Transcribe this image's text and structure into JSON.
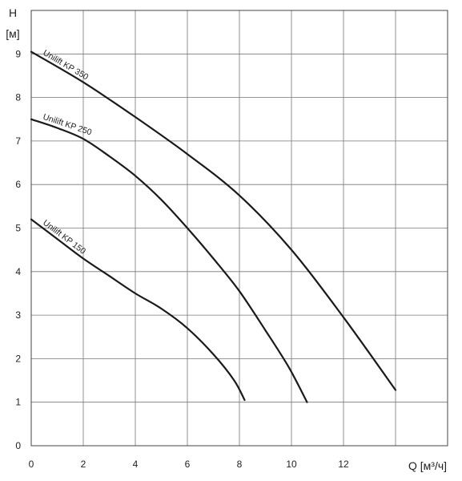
{
  "chart_data": {
    "type": "line",
    "xlabel": "Q [м³/ч]",
    "ylabel_lines": [
      "H",
      "[м]"
    ],
    "xlim": [
      0,
      16
    ],
    "ylim": [
      0,
      10
    ],
    "x_ticks": [
      0,
      2,
      4,
      6,
      8,
      10,
      12
    ],
    "x_tick_labels": [
      "0",
      "2",
      "4",
      "6",
      "8",
      "10",
      "12"
    ],
    "y_ticks": [
      0,
      1,
      2,
      3,
      4,
      5,
      6,
      7,
      8,
      9
    ],
    "y_tick_labels": [
      "0",
      "1",
      "2",
      "3",
      "4",
      "5",
      "6",
      "7",
      "8",
      "9"
    ],
    "grid": true,
    "series": [
      {
        "name": "Unilift KP 350",
        "x": [
          0,
          2,
          4,
          6,
          8,
          10,
          12,
          14
        ],
        "y": [
          9.05,
          8.35,
          7.55,
          6.7,
          5.75,
          4.5,
          2.95,
          1.28
        ]
      },
      {
        "name": "Unilift KP 250",
        "x": [
          0,
          1,
          2,
          3,
          4,
          5,
          6,
          7,
          8,
          9,
          9.9,
          10.6
        ],
        "y": [
          7.5,
          7.3,
          7.05,
          6.65,
          6.2,
          5.65,
          5.0,
          4.3,
          3.55,
          2.65,
          1.8,
          1.0
        ]
      },
      {
        "name": "Unilift KP 150",
        "x": [
          0,
          1,
          2,
          3,
          4,
          5,
          6,
          7,
          7.8,
          8.2
        ],
        "y": [
          5.2,
          4.75,
          4.3,
          3.9,
          3.5,
          3.15,
          2.7,
          2.1,
          1.5,
          1.05
        ]
      }
    ]
  }
}
